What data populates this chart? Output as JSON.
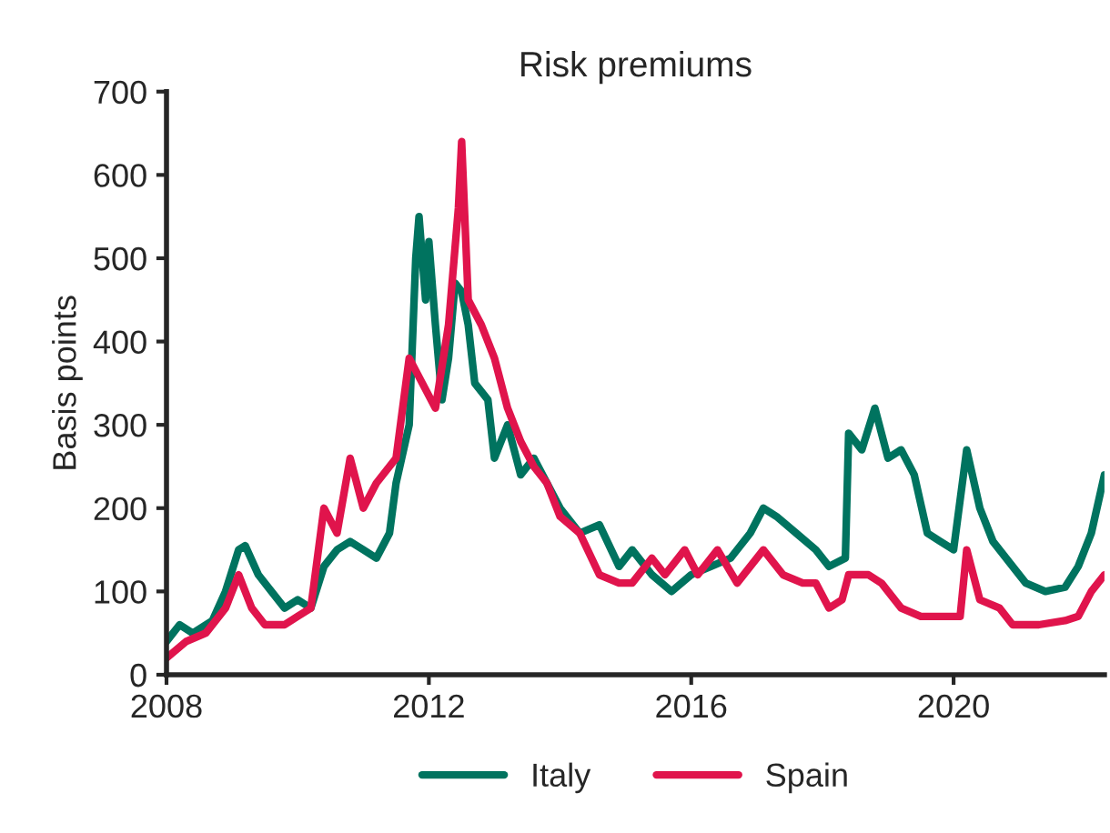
{
  "chart_data": {
    "type": "line",
    "title": "Risk premiums",
    "ylabel": "Basis points",
    "xlim": [
      2008,
      2022.3
    ],
    "xticks": [
      2008,
      2012,
      2016,
      2020
    ],
    "ylim": [
      0,
      700
    ],
    "yticks": [
      0,
      100,
      200,
      300,
      400,
      500,
      600,
      700
    ],
    "grid": false,
    "legend": "bottom",
    "series": [
      {
        "name": "Italy",
        "color": "#00735f",
        "x": [
          2008.0,
          2008.2,
          2008.4,
          2008.7,
          2008.9,
          2009.1,
          2009.2,
          2009.4,
          2009.6,
          2009.8,
          2010.0,
          2010.2,
          2010.4,
          2010.6,
          2010.8,
          2011.0,
          2011.2,
          2011.4,
          2011.5,
          2011.7,
          2011.8,
          2011.85,
          2011.95,
          2012.0,
          2012.1,
          2012.2,
          2012.3,
          2012.4,
          2012.5,
          2012.6,
          2012.7,
          2012.9,
          2013.0,
          2013.2,
          2013.4,
          2013.6,
          2013.8,
          2014.0,
          2014.3,
          2014.6,
          2014.9,
          2015.1,
          2015.4,
          2015.7,
          2016.0,
          2016.3,
          2016.6,
          2016.9,
          2017.1,
          2017.3,
          2017.6,
          2017.9,
          2018.1,
          2018.35,
          2018.4,
          2018.6,
          2018.8,
          2019.0,
          2019.2,
          2019.4,
          2019.6,
          2019.8,
          2020.0,
          2020.2,
          2020.4,
          2020.6,
          2020.9,
          2021.1,
          2021.4,
          2021.7,
          2021.9,
          2022.1,
          2022.3
        ],
        "values": [
          40,
          60,
          50,
          65,
          100,
          150,
          155,
          120,
          100,
          80,
          90,
          80,
          130,
          150,
          160,
          150,
          140,
          170,
          230,
          300,
          500,
          550,
          450,
          520,
          420,
          330,
          380,
          470,
          460,
          420,
          350,
          330,
          260,
          300,
          240,
          260,
          230,
          200,
          170,
          180,
          130,
          150,
          120,
          100,
          120,
          130,
          140,
          170,
          200,
          190,
          170,
          150,
          130,
          140,
          290,
          270,
          320,
          260,
          270,
          240,
          170,
          160,
          150,
          270,
          200,
          160,
          130,
          110,
          100,
          105,
          130,
          170,
          240
        ]
      },
      {
        "name": "Spain",
        "color": "#e0144c",
        "x": [
          2008.0,
          2008.3,
          2008.6,
          2008.9,
          2009.1,
          2009.3,
          2009.5,
          2009.8,
          2010.0,
          2010.2,
          2010.4,
          2010.6,
          2010.8,
          2011.0,
          2011.2,
          2011.5,
          2011.7,
          2011.9,
          2012.1,
          2012.3,
          2012.45,
          2012.5,
          2012.6,
          2012.8,
          2013.0,
          2013.2,
          2013.4,
          2013.6,
          2013.8,
          2014.0,
          2014.3,
          2014.6,
          2014.9,
          2015.1,
          2015.4,
          2015.6,
          2015.9,
          2016.1,
          2016.4,
          2016.7,
          2016.9,
          2017.1,
          2017.4,
          2017.7,
          2017.9,
          2018.1,
          2018.3,
          2018.4,
          2018.7,
          2018.9,
          2019.2,
          2019.5,
          2019.8,
          2020.1,
          2020.2,
          2020.4,
          2020.7,
          2020.9,
          2021.3,
          2021.7,
          2021.9,
          2022.1,
          2022.3
        ],
        "values": [
          20,
          40,
          50,
          80,
          120,
          80,
          60,
          60,
          70,
          80,
          200,
          170,
          260,
          200,
          230,
          260,
          380,
          350,
          320,
          420,
          560,
          640,
          450,
          420,
          380,
          320,
          280,
          250,
          230,
          190,
          170,
          120,
          110,
          110,
          140,
          120,
          150,
          120,
          150,
          110,
          130,
          150,
          120,
          110,
          110,
          80,
          90,
          120,
          120,
          110,
          80,
          70,
          70,
          70,
          150,
          90,
          80,
          60,
          60,
          65,
          70,
          100,
          120
        ]
      }
    ]
  }
}
